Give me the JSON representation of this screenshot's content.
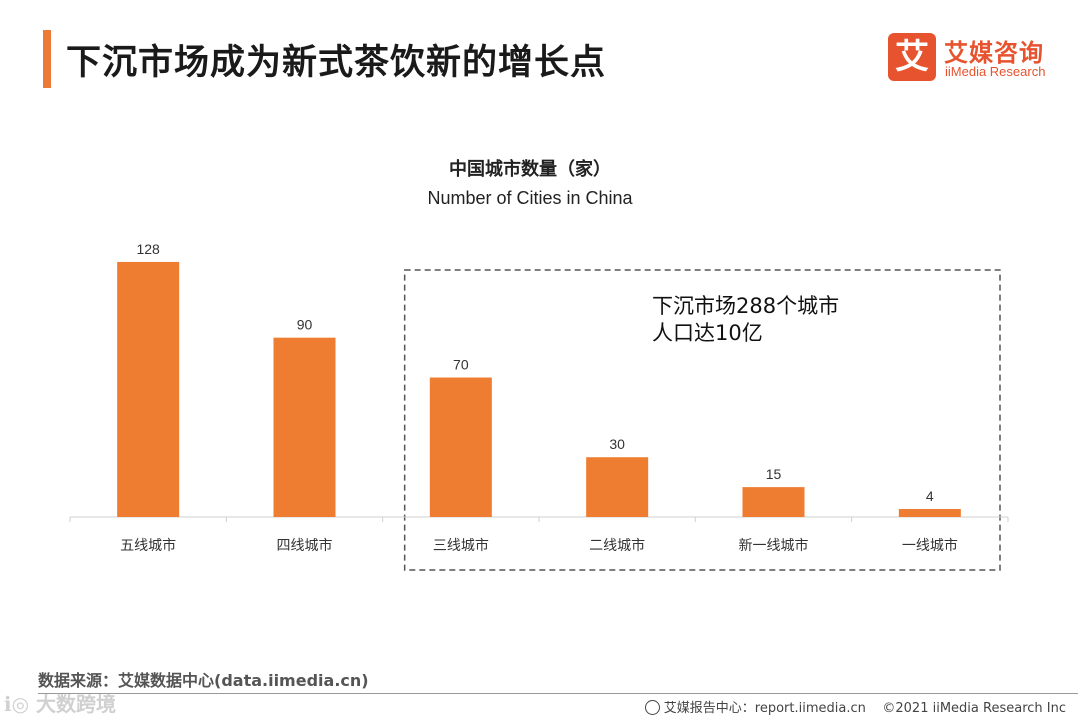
{
  "header": {
    "title": "下沉市场成为新式茶饮新的增长点",
    "logo_mark": "艾",
    "logo_cn": "艾媒咨询",
    "logo_en": "iiMedia Research"
  },
  "chart_data": {
    "type": "bar",
    "title": "中国城市数量（家）",
    "subtitle": "Number of Cities in China",
    "categories": [
      "五线城市",
      "四线城市",
      "三线城市",
      "二线城市",
      "新一线城市",
      "一线城市"
    ],
    "values": [
      128,
      90,
      70,
      30,
      15,
      4
    ],
    "ylim": [
      0,
      135
    ],
    "xlabel": "",
    "ylabel": "",
    "grid": false,
    "bar_color": "#ee7d31",
    "annotation": {
      "lines": [
        "下沉市场288个城市",
        "人口达10亿"
      ],
      "covers_categories": [
        "三线城市",
        "二线城市",
        "新一线城市",
        "一线城市"
      ]
    }
  },
  "footer": {
    "source": "数据来源：艾媒数据中心(data.iimedia.cn)",
    "report_center": "艾媒报告中心：report.iimedia.cn",
    "copyright": "©2021  iiMedia Research  Inc"
  }
}
